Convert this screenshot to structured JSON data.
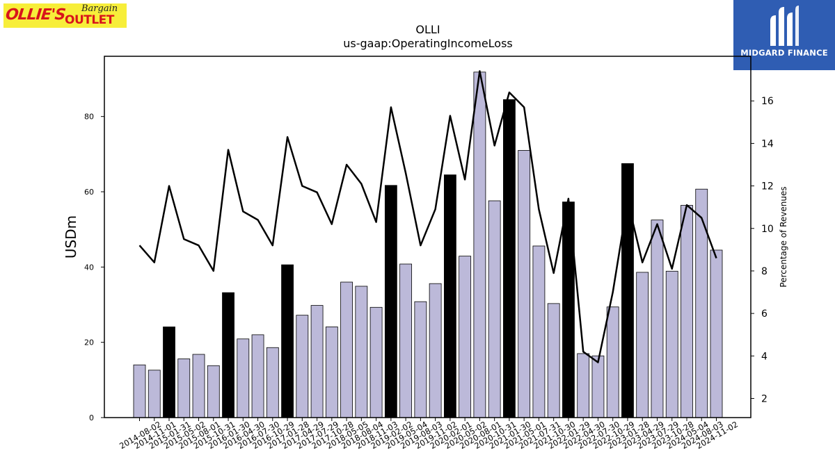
{
  "logos": {
    "ollies_text": "OLLIE'S Bargain OUTLET",
    "midgard_text": "MIDGARD FINANCE"
  },
  "colors": {
    "bar": "#bcb9d9",
    "bar_highlight": "#000000",
    "line": "#000000",
    "midgard": "#2f5db3",
    "ollies_bg": "#f7ee3a",
    "ollies_red": "#d8141b"
  },
  "chart_data": {
    "type": "bar",
    "title": "OLLI",
    "subtitle": "us-gaap:OperatingIncomeLoss",
    "ylabel": "USDm",
    "y2label": "Percentage of Revenues",
    "ylim": [
      0,
      96
    ],
    "y2lim": [
      1.1,
      18.1
    ],
    "yticks": [
      0,
      20,
      40,
      60,
      80
    ],
    "y2ticks": [
      2,
      4,
      6,
      8,
      10,
      12,
      14,
      16
    ],
    "categories": [
      "2014-08-02",
      "2014-11-01",
      "2015-01-31",
      "2015-05-02",
      "2015-08-01",
      "2015-10-31",
      "2016-01-30",
      "2016-04-30",
      "2016-07-30",
      "2016-10-29",
      "2017-01-28",
      "2017-04-29",
      "2017-07-29",
      "2017-10-28",
      "2018-05-05",
      "2018-08-04",
      "2018-11-03",
      "2019-02-02",
      "2019-05-04",
      "2019-08-03",
      "2019-11-02",
      "2020-02-01",
      "2020-05-02",
      "2020-08-01",
      "2020-10-31",
      "2021-01-30",
      "2021-05-01",
      "2021-07-31",
      "2021-10-30",
      "2022-01-29",
      "2022-04-30",
      "2022-07-30",
      "2022-10-29",
      "2023-01-28",
      "2023-04-29",
      "2023-07-29",
      "2023-10-28",
      "2024-05-04",
      "2024-08-03",
      "2024-11-02"
    ],
    "series": [
      {
        "type": "bar",
        "values": [
          14.0,
          12.6,
          24.1,
          15.6,
          16.8,
          13.8,
          33.2,
          20.9,
          22.0,
          18.6,
          40.6,
          27.2,
          29.8,
          24.1,
          36.0,
          34.9,
          29.3,
          61.7,
          40.8,
          30.8,
          35.6,
          64.5,
          42.9,
          91.8,
          57.6,
          84.5,
          71.0,
          45.6,
          30.3,
          57.3,
          17.0,
          16.4,
          29.4,
          67.5,
          38.6,
          52.5,
          38.9,
          56.4,
          60.7,
          44.5
        ],
        "highlight": [
          false,
          false,
          true,
          false,
          false,
          false,
          true,
          false,
          false,
          false,
          true,
          false,
          false,
          false,
          false,
          false,
          false,
          true,
          false,
          false,
          false,
          true,
          false,
          false,
          false,
          true,
          false,
          false,
          false,
          true,
          false,
          false,
          false,
          true,
          false,
          false,
          false,
          false,
          false,
          false
        ]
      },
      {
        "type": "line",
        "values": [
          9.2,
          8.4,
          12.0,
          9.5,
          9.2,
          8.0,
          13.7,
          10.8,
          10.4,
          9.2,
          14.3,
          12.0,
          11.7,
          10.2,
          13.0,
          12.1,
          10.3,
          15.7,
          12.6,
          9.2,
          10.9,
          15.3,
          12.3,
          17.4,
          13.9,
          16.4,
          15.7,
          10.9,
          7.9,
          11.4,
          4.2,
          3.7,
          7.0,
          11.3,
          8.4,
          10.2,
          8.1,
          11.1,
          10.5,
          8.6
        ]
      }
    ]
  }
}
